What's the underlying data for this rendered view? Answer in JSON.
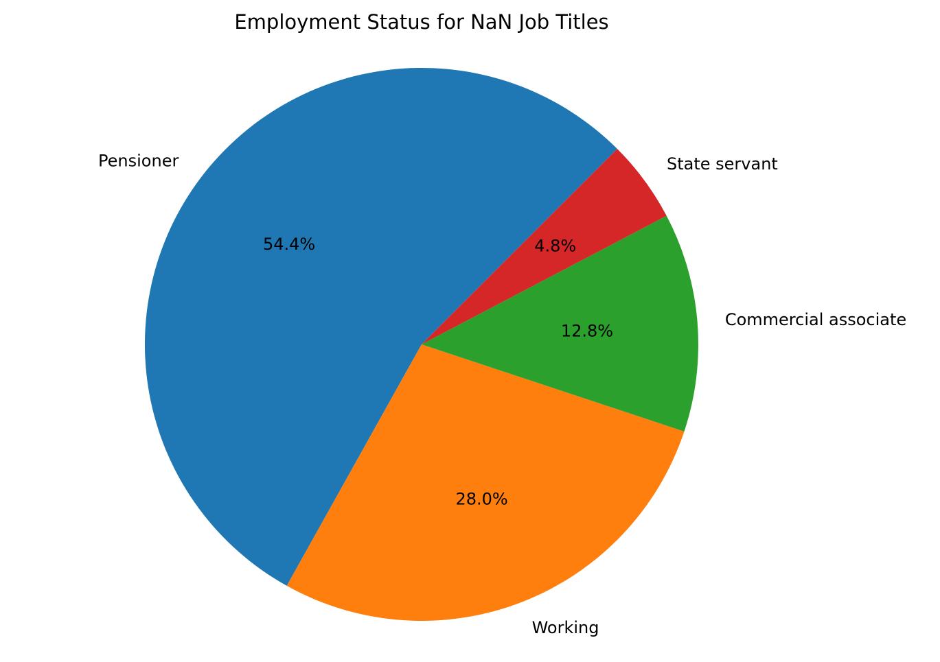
{
  "chart_data": {
    "type": "pie",
    "title": "Employment Status for NaN Job Titles",
    "categories": [
      "Pensioner",
      "Working",
      "Commercial associate",
      "State servant"
    ],
    "values": [
      54.4,
      28.0,
      12.8,
      4.8
    ],
    "value_labels": [
      "54.4%",
      "28.0%",
      "12.8%",
      "4.8%"
    ],
    "colors": [
      "#1f77b4",
      "#ff7f0e",
      "#2ca02c",
      "#d62728"
    ],
    "start_angle_deg": 45,
    "direction": "counterclockwise",
    "legend": "none"
  }
}
